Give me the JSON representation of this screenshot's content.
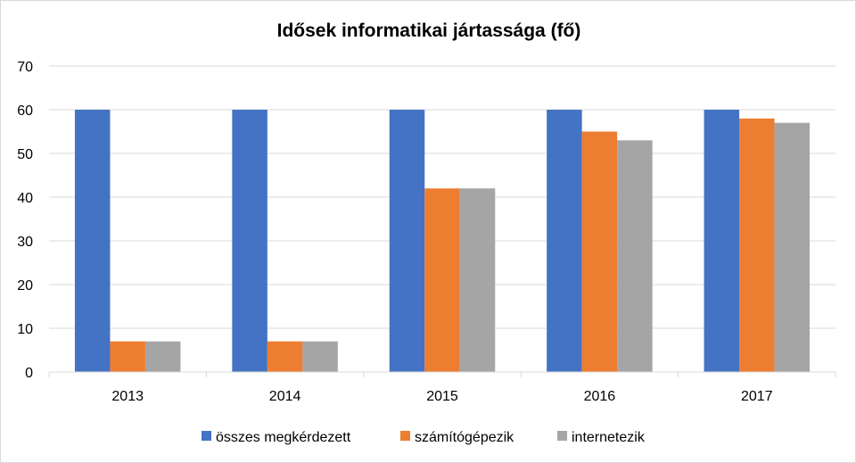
{
  "chart_data": {
    "type": "bar",
    "title": "Idősek informatikai jártassága (fő)",
    "categories": [
      "2013",
      "2014",
      "2015",
      "2016",
      "2017"
    ],
    "series": [
      {
        "name": "összes megkérdezett",
        "color": "#4472C4",
        "values": [
          60,
          60,
          60,
          60,
          60
        ]
      },
      {
        "name": "számítógépezik",
        "color": "#ED7D31",
        "values": [
          7,
          7,
          42,
          55,
          58
        ]
      },
      {
        "name": "internetezik",
        "color": "#A5A5A5",
        "values": [
          7,
          7,
          42,
          53,
          57
        ]
      }
    ],
    "ylim": [
      0,
      70
    ],
    "yticks": [
      0,
      10,
      20,
      30,
      40,
      50,
      60,
      70
    ],
    "grid": true,
    "legend": "bottom"
  }
}
